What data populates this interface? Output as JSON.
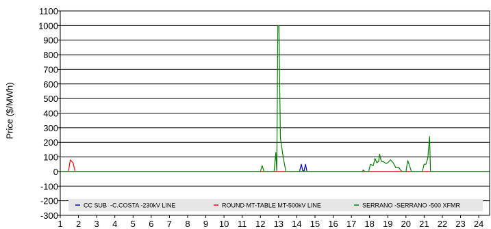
{
  "chart_data": {
    "type": "line",
    "title": "",
    "xlabel": "",
    "ylabel": "Price ($/MWh)",
    "x_ticks": [
      1,
      2,
      3,
      4,
      5,
      6,
      7,
      8,
      9,
      10,
      11,
      12,
      13,
      14,
      15,
      16,
      17,
      18,
      19,
      20,
      21,
      22,
      23,
      24
    ],
    "xlim": [
      1,
      24.6
    ],
    "y_ticks": [
      -300,
      -200,
      -100,
      0,
      100,
      200,
      300,
      400,
      500,
      600,
      700,
      800,
      900,
      1000,
      1100
    ],
    "ylim": [
      -300,
      1100
    ],
    "grid": "horizontal",
    "legend_position": "bottom-inside",
    "series": [
      {
        "name": "CC SUB  -C.COSTA -230kV LINE",
        "color": "#0000cc",
        "points": [
          [
            1,
            0
          ],
          [
            14.15,
            0
          ],
          [
            14.25,
            50
          ],
          [
            14.33,
            5
          ],
          [
            14.4,
            5
          ],
          [
            14.48,
            50
          ],
          [
            14.56,
            0
          ],
          [
            24.6,
            0
          ]
        ]
      },
      {
        "name": "ROUND MT-TABLE MT-500kV LINE",
        "color": "#ff0000",
        "points": [
          [
            1,
            0
          ],
          [
            1.45,
            0
          ],
          [
            1.55,
            80
          ],
          [
            1.7,
            60
          ],
          [
            1.82,
            0
          ],
          [
            24.6,
            0
          ]
        ]
      },
      {
        "name": "SERRANO -SERRANO -500 XFMR",
        "color": "#008000",
        "points": [
          [
            1,
            0
          ],
          [
            12.0,
            0
          ],
          [
            12.1,
            40
          ],
          [
            12.2,
            0
          ],
          [
            12.75,
            0
          ],
          [
            12.85,
            130
          ],
          [
            12.9,
            0
          ],
          [
            12.96,
            1000
          ],
          [
            13.02,
            1000
          ],
          [
            13.1,
            230
          ],
          [
            13.25,
            100
          ],
          [
            13.4,
            0
          ],
          [
            17.6,
            0
          ],
          [
            17.65,
            10
          ],
          [
            17.75,
            0
          ],
          [
            17.95,
            0
          ],
          [
            18.05,
            50
          ],
          [
            18.2,
            40
          ],
          [
            18.3,
            90
          ],
          [
            18.4,
            60
          ],
          [
            18.5,
            70
          ],
          [
            18.55,
            120
          ],
          [
            18.65,
            70
          ],
          [
            18.8,
            65
          ],
          [
            18.9,
            55
          ],
          [
            19.0,
            60
          ],
          [
            19.15,
            80
          ],
          [
            19.3,
            60
          ],
          [
            19.45,
            25
          ],
          [
            19.6,
            30
          ],
          [
            19.7,
            10
          ],
          [
            19.8,
            0
          ],
          [
            20.0,
            0
          ],
          [
            20.1,
            75
          ],
          [
            20.2,
            40
          ],
          [
            20.3,
            0
          ],
          [
            20.9,
            0
          ],
          [
            21.0,
            50
          ],
          [
            21.1,
            50
          ],
          [
            21.2,
            90
          ],
          [
            21.3,
            240
          ],
          [
            21.35,
            0
          ],
          [
            24.6,
            0
          ]
        ]
      }
    ]
  }
}
